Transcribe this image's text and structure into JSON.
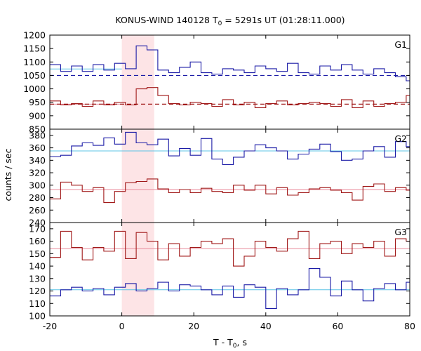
{
  "title": {
    "prefix": "KONUS-WIND 140128 T",
    "subscript": "0",
    "suffix": " = 5291s UT (01:28:11.000)"
  },
  "xlabel": {
    "prefix": "T - T",
    "subscript": "0",
    "suffix": ", s"
  },
  "ylabel": "counts / sec",
  "colors": {
    "red": "#a01818",
    "blue": "#1a1aa6",
    "light_red": "#e88a9a",
    "light_blue": "#5cc4e6",
    "shade": "#fde4e6"
  },
  "chart_data": {
    "type": "line",
    "x_ticks": [
      -20,
      0,
      20,
      40,
      60,
      80
    ],
    "xlim": [
      -20,
      80
    ],
    "shaded_interval": [
      0,
      9
    ],
    "bin_start": -20,
    "bin_width": 3,
    "panels": [
      {
        "label": "G1",
        "ylim": [
          850,
          1200
        ],
        "y_ticks": [
          850,
          900,
          950,
          1000,
          1050,
          1100,
          1150,
          1200
        ],
        "series": [
          {
            "color": "blue",
            "values": [
              1090,
              1065,
              1085,
              1065,
              1090,
              1070,
              1095,
              1075,
              1160,
              1145,
              1070,
              1060,
              1080,
              1100,
              1060,
              1055,
              1075,
              1070,
              1060,
              1085,
              1075,
              1065,
              1095,
              1060,
              1055,
              1085,
              1070,
              1090,
              1070,
              1055,
              1075,
              1060,
              1045,
              1030,
              1060,
              1085,
              1065,
              1090,
              1105,
              1040,
              1015,
              1025,
              1035,
              1060,
              1055,
              1045,
              1060,
              1050,
              1030,
              1050,
              1070,
              1055,
              1075,
              1050,
              1095,
              1070
            ]
          },
          {
            "color": "red",
            "values": [
              955,
              940,
              945,
              935,
              955,
              940,
              950,
              940,
              1000,
              1005,
              975,
              945,
              940,
              950,
              945,
              935,
              960,
              940,
              950,
              930,
              945,
              955,
              940,
              945,
              950,
              945,
              935,
              960,
              930,
              955,
              935,
              945,
              950,
              975,
              910,
              960,
              950,
              940,
              955,
              970,
              930,
              960,
              945,
              980,
              945,
              960,
              950,
              935,
              955,
              940,
              945,
              935,
              965,
              940,
              950,
              945
            ]
          }
        ],
        "background_levels": [
          {
            "color": "light_blue",
            "level": 1074,
            "x_start": -20,
            "x_end": 0
          },
          {
            "color": "light_red",
            "level": 943,
            "x_start": -20,
            "x_end": 0
          }
        ],
        "fit_lines": [
          {
            "color": "blue",
            "level": 1050,
            "dashed": true
          },
          {
            "color": "red",
            "level": 943,
            "dashed": true
          }
        ]
      },
      {
        "label": "G2",
        "ylim": [
          240,
          390
        ],
        "y_ticks": [
          240,
          260,
          280,
          300,
          320,
          340,
          360,
          380
        ],
        "series": [
          {
            "color": "blue",
            "values": [
              346,
              348,
              363,
              368,
              364,
              376,
              366,
              385,
              368,
              365,
              374,
              347,
              359,
              348,
              375,
              342,
              333,
              345,
              355,
              365,
              360,
              355,
              342,
              350,
              358,
              366,
              354,
              340,
              342,
              355,
              362,
              345,
              370,
              362,
              368,
              354,
              360,
              345,
              350,
              334,
              330,
              344,
              360,
              366,
              354,
              374,
              360,
              358,
              370,
              377,
              384,
              360,
              362,
              355,
              350,
              355
            ]
          },
          {
            "color": "red",
            "values": [
              278,
              305,
              300,
              290,
              296,
              272,
              290,
              304,
              306,
              310,
              294,
              288,
              293,
              288,
              295,
              290,
              288,
              300,
              292,
              300,
              286,
              296,
              284,
              288,
              294,
              296,
              292,
              288,
              276,
              298,
              302,
              290,
              296,
              292,
              280,
              300,
              294,
              298,
              302,
              290,
              288,
              300,
              298,
              296,
              300,
              302,
              298,
              292,
              290,
              296,
              300,
              292,
              286,
              298,
              300,
              296
            ]
          }
        ],
        "fit_lines": [
          {
            "color": "light_blue",
            "level": 355,
            "dashed": false
          },
          {
            "color": "light_red",
            "level": 293,
            "dashed": false
          }
        ]
      },
      {
        "label": "G3",
        "ylim": [
          100,
          175
        ],
        "y_ticks": [
          100,
          110,
          120,
          130,
          140,
          150,
          160,
          170
        ],
        "series": [
          {
            "color": "blue",
            "values": [
              116,
              121,
              123,
              120,
              122,
              117,
              123,
              126,
              120,
              122,
              127,
              120,
              125,
              124,
              121,
              117,
              124,
              115,
              125,
              123,
              106,
              122,
              117,
              121,
              138,
              131,
              116,
              128,
              121,
              112,
              122,
              126,
              121,
              127,
              123,
              117,
              120,
              126,
              122,
              118,
              121,
              124,
              128,
              112,
              124,
              127,
              122,
              109,
              124,
              122,
              105,
              126,
              110,
              121,
              116,
              125
            ]
          },
          {
            "color": "red",
            "values": [
              147,
              168,
              155,
              145,
              155,
              152,
              168,
              146,
              167,
              160,
              145,
              158,
              148,
              155,
              160,
              158,
              162,
              140,
              148,
              160,
              155,
              152,
              162,
              168,
              146,
              158,
              160,
              150,
              158,
              155,
              160,
              148,
              162,
              160,
              152,
              156,
              160,
              150,
              162,
              158,
              148,
              155,
              157,
              150,
              140,
              160,
              155,
              165,
              152,
              145,
              160,
              158,
              150,
              155,
              148,
              170
            ]
          }
        ],
        "fit_lines": [
          {
            "color": "light_red",
            "level": 154,
            "dashed": false
          },
          {
            "color": "light_blue",
            "level": 121,
            "dashed": false
          }
        ]
      }
    ]
  }
}
